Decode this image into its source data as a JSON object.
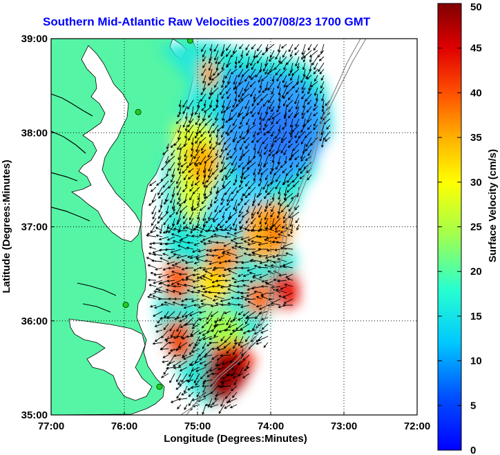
{
  "title": "Southern Mid-Atlantic Raw Velocities 2007/08/23 1700 GMT",
  "x_axis": {
    "label": "Longitude (Degrees:Minutes)",
    "ticks": [
      "77:00",
      "76:00",
      "75:00",
      "74:00",
      "73:00",
      "72:00"
    ],
    "values": [
      -77,
      -76,
      -75,
      -74,
      -73,
      -72
    ]
  },
  "y_axis": {
    "label": "Latitude (Degrees:Minutes)",
    "ticks": [
      "39:00",
      "38:00",
      "37:00",
      "36:00",
      "35:00"
    ],
    "values": [
      39,
      38,
      37,
      36,
      35
    ]
  },
  "colorbar": {
    "label": "Surface Velocity (cm/s)",
    "ticks": [
      "0",
      "5",
      "10",
      "15",
      "20",
      "25",
      "30",
      "35",
      "40",
      "45",
      "50"
    ],
    "min": 0,
    "max": 50,
    "colormap": "jet"
  },
  "map": {
    "land_color": "#55f5a5",
    "grid": "dotted",
    "stations": [
      {
        "lon": -75.1,
        "lat": 38.98
      },
      {
        "lon": -75.81,
        "lat": 38.22
      },
      {
        "lon": -75.98,
        "lat": 36.17
      },
      {
        "lon": -75.52,
        "lat": 35.3
      }
    ]
  },
  "chart_data": {
    "type": "heatmap",
    "title": "Southern Mid-Atlantic Raw Velocities 2007/08/23 1700 GMT",
    "xlabel": "Longitude (Degrees:Minutes)",
    "ylabel": "Latitude (Degrees:Minutes)",
    "xlim": [
      -77,
      -72
    ],
    "ylim": [
      35,
      39
    ],
    "value_label": "Surface Velocity (cm/s)",
    "value_range": [
      0,
      50
    ],
    "regions": [
      {
        "lon": -74.2,
        "lat": 38.2,
        "speed": 8
      },
      {
        "lon": -74.6,
        "lat": 37.6,
        "speed": 12
      },
      {
        "lon": -75.1,
        "lat": 38.6,
        "speed": 22
      },
      {
        "lon": -75.2,
        "lat": 37.7,
        "speed": 33
      },
      {
        "lon": -74.2,
        "lat": 36.9,
        "speed": 34
      },
      {
        "lon": -74.8,
        "lat": 36.4,
        "speed": 22
      },
      {
        "lon": -75.7,
        "lat": 36.4,
        "speed": 38
      },
      {
        "lon": -73.8,
        "lat": 36.3,
        "speed": 40
      },
      {
        "lon": -74.8,
        "lat": 35.4,
        "speed": 50
      }
    ]
  }
}
